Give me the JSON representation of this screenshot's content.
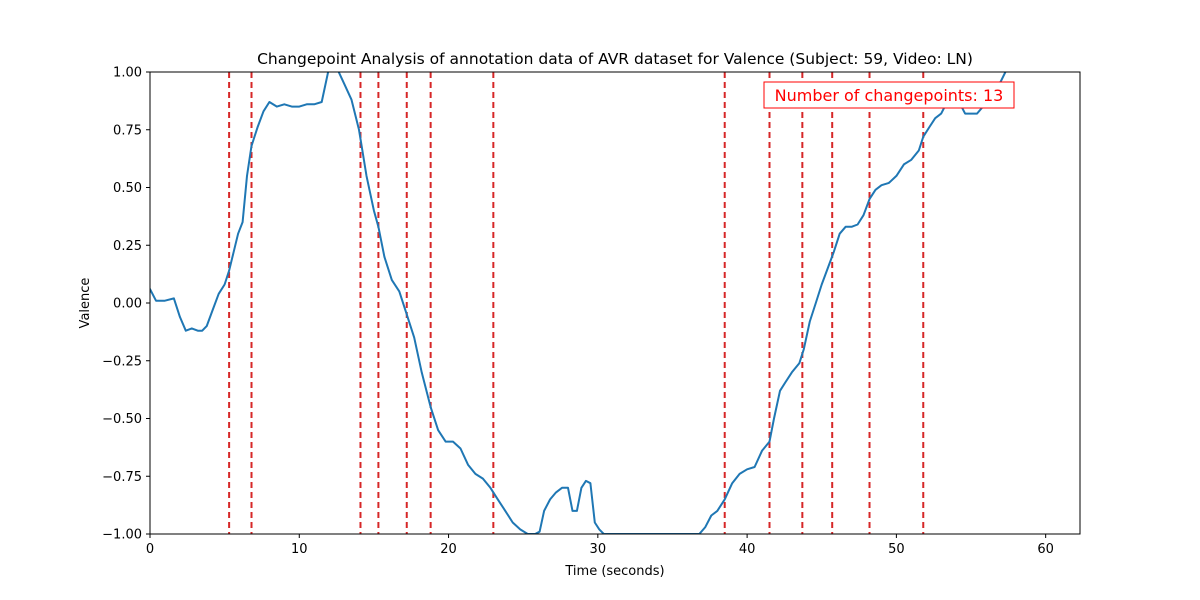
{
  "chart_data": {
    "type": "line",
    "title": "Changepoint Analysis of annotation data of AVR dataset for Valence (Subject: 59, Video: LN)",
    "xlabel": "Time (seconds)",
    "ylabel": "Valence",
    "xlim": [
      0,
      62.3
    ],
    "ylim": [
      -1.0,
      1.0
    ],
    "xticks": [
      0,
      10,
      20,
      30,
      40,
      50,
      60
    ],
    "yticks": [
      -1.0,
      -0.75,
      -0.5,
      -0.25,
      0.0,
      0.25,
      0.5,
      0.75,
      1.0
    ],
    "xtick_labels": [
      "0",
      "10",
      "20",
      "30",
      "40",
      "50",
      "60"
    ],
    "ytick_labels": [
      "−1.00",
      "−0.75",
      "−0.50",
      "−0.25",
      "0.00",
      "0.25",
      "0.50",
      "0.75",
      "1.00"
    ],
    "grid": false,
    "series": [
      {
        "color": "#1f77b4",
        "x": [
          0,
          0.4,
          1.0,
          1.6,
          2.0,
          2.4,
          2.8,
          3.2,
          3.5,
          3.8,
          4.2,
          4.6,
          5.0,
          5.3,
          5.6,
          5.9,
          6.2,
          6.5,
          6.8,
          7.2,
          7.6,
          8.0,
          8.5,
          9.0,
          9.5,
          10.0,
          10.5,
          11.0,
          11.5,
          12.0,
          12.5,
          13.0,
          13.5,
          14.0,
          14.5,
          15.0,
          15.3,
          15.7,
          16.2,
          16.7,
          17.2,
          17.7,
          18.2,
          18.8,
          19.3,
          19.8,
          20.3,
          20.8,
          21.3,
          21.8,
          22.3,
          22.8,
          23.3,
          23.8,
          24.3,
          24.8,
          25.3,
          25.8,
          26.1,
          26.4,
          26.8,
          27.2,
          27.6,
          28.0,
          28.3,
          28.6,
          28.9,
          29.2,
          29.5,
          29.8,
          30.1,
          30.4,
          31.0,
          32.0,
          33.0,
          34.0,
          35.0,
          36.0,
          36.8,
          37.2,
          37.6,
          38.0,
          38.5,
          39.0,
          39.5,
          40.0,
          40.5,
          41.0,
          41.5,
          41.8,
          42.2,
          42.6,
          43.0,
          43.5,
          43.8,
          44.2,
          44.6,
          45.0,
          45.4,
          45.8,
          46.2,
          46.6,
          47.0,
          47.4,
          47.8,
          48.2,
          48.6,
          49.0,
          49.5,
          50.0,
          50.5,
          51.0,
          51.5,
          51.8,
          52.2,
          52.6,
          53.0,
          53.4,
          53.8,
          54.2,
          54.6,
          55.0,
          55.4,
          55.8,
          56.2,
          56.6,
          57.0,
          57.3,
          57.6
        ],
        "y": [
          0.06,
          0.01,
          0.01,
          0.02,
          -0.06,
          -0.12,
          -0.11,
          -0.12,
          -0.12,
          -0.1,
          -0.03,
          0.04,
          0.08,
          0.14,
          0.22,
          0.3,
          0.35,
          0.55,
          0.68,
          0.76,
          0.83,
          0.87,
          0.85,
          0.86,
          0.85,
          0.85,
          0.86,
          0.86,
          0.87,
          1.02,
          1.02,
          0.95,
          0.88,
          0.75,
          0.55,
          0.4,
          0.33,
          0.2,
          0.1,
          0.05,
          -0.05,
          -0.15,
          -0.3,
          -0.45,
          -0.55,
          -0.6,
          -0.6,
          -0.63,
          -0.7,
          -0.74,
          -0.76,
          -0.8,
          -0.85,
          -0.9,
          -0.95,
          -0.98,
          -1.0,
          -1.0,
          -0.99,
          -0.9,
          -0.85,
          -0.82,
          -0.8,
          -0.8,
          -0.9,
          -0.9,
          -0.8,
          -0.77,
          -0.78,
          -0.95,
          -0.98,
          -1.0,
          -1.0,
          -1.0,
          -1.0,
          -1.0,
          -1.0,
          -1.0,
          -1.0,
          -0.97,
          -0.92,
          -0.9,
          -0.85,
          -0.78,
          -0.74,
          -0.72,
          -0.71,
          -0.64,
          -0.6,
          -0.5,
          -0.38,
          -0.34,
          -0.3,
          -0.26,
          -0.2,
          -0.08,
          0.0,
          0.08,
          0.15,
          0.22,
          0.3,
          0.33,
          0.33,
          0.34,
          0.38,
          0.45,
          0.49,
          0.51,
          0.52,
          0.55,
          0.6,
          0.62,
          0.66,
          0.72,
          0.76,
          0.8,
          0.82,
          0.87,
          0.88,
          0.87,
          0.82,
          0.82,
          0.82,
          0.85,
          0.88,
          0.92,
          0.96,
          1.0,
          1.03
        ]
      }
    ],
    "changepoints": [
      5.3,
      6.8,
      14.1,
      15.3,
      17.2,
      18.8,
      23.0,
      38.5,
      41.5,
      43.7,
      45.7,
      48.2,
      51.8
    ],
    "changepoint_color": "#d62728",
    "annotation": {
      "text": "Number of changepoints: 13",
      "color": "#ff0000",
      "position": "top-right"
    }
  }
}
